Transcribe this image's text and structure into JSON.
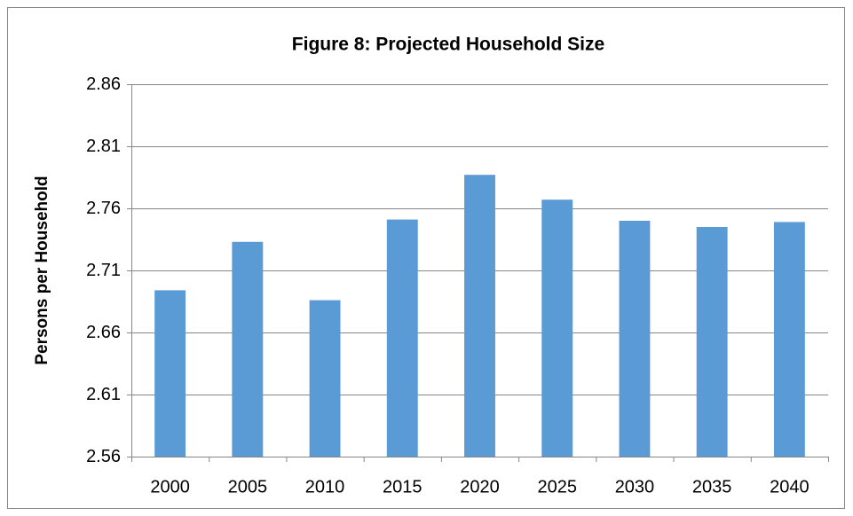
{
  "chart_data": {
    "type": "bar",
    "title": "Figure 8: Projected Household Size",
    "y_label": "Persons per Household",
    "categories": [
      "2000",
      "2005",
      "2010",
      "2015",
      "2020",
      "2025",
      "2030",
      "2035",
      "2040"
    ],
    "values": [
      2.694,
      2.733,
      2.686,
      2.751,
      2.787,
      2.767,
      2.75,
      2.745,
      2.749
    ],
    "color": "#5b9bd5",
    "ylim": [
      2.56,
      2.86
    ],
    "yticks": [
      2.56,
      2.61,
      2.66,
      2.71,
      2.76,
      2.81,
      2.86
    ],
    "grid": true
  }
}
